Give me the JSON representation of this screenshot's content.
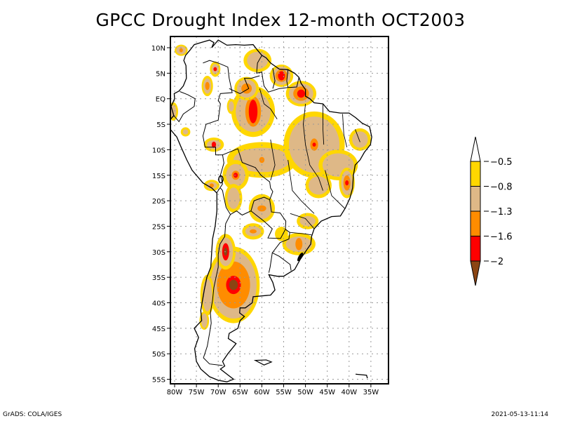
{
  "title": "GPCC Drought Index 12-month OCT2003",
  "footer": {
    "left": "GrADS: COLA/IGES",
    "right": "2021-05-13-11:14"
  },
  "map": {
    "region": "South America",
    "lon_range": [
      -81,
      -31
    ],
    "lat_range": [
      -56,
      11
    ],
    "lat_ticks": [
      {
        "value": 10,
        "label": "10N"
      },
      {
        "value": 5,
        "label": "5N"
      },
      {
        "value": 0,
        "label": "EQ"
      },
      {
        "value": -5,
        "label": "5S"
      },
      {
        "value": -10,
        "label": "10S"
      },
      {
        "value": -15,
        "label": "15S"
      },
      {
        "value": -20,
        "label": "20S"
      },
      {
        "value": -25,
        "label": "25S"
      },
      {
        "value": -30,
        "label": "30S"
      },
      {
        "value": -35,
        "label": "35S"
      },
      {
        "value": -40,
        "label": "40S"
      },
      {
        "value": -45,
        "label": "45S"
      },
      {
        "value": -50,
        "label": "50S"
      },
      {
        "value": -55,
        "label": "55S"
      }
    ],
    "lon_ticks": [
      {
        "value": -80,
        "label": "80W"
      },
      {
        "value": -75,
        "label": "75W"
      },
      {
        "value": -70,
        "label": "70W"
      },
      {
        "value": -65,
        "label": "65W"
      },
      {
        "value": -60,
        "label": "60W"
      },
      {
        "value": -55,
        "label": "55W"
      },
      {
        "value": -50,
        "label": "50W"
      },
      {
        "value": -45,
        "label": "45W"
      },
      {
        "value": -40,
        "label": "40W"
      },
      {
        "value": -35,
        "label": "35W"
      }
    ],
    "grid": "dotted"
  },
  "colorbar": {
    "labels": [
      "-0.5",
      "-0.8",
      "-1.3",
      "-1.6",
      "-2"
    ],
    "colors": {
      "above": "#ffffff",
      "c1": "#ffd700",
      "c2": "#deb887",
      "c3": "#ff8c00",
      "c4": "#ff0000",
      "below": "#8b4513"
    }
  },
  "drought_patches": [
    {
      "name": "argentina-central",
      "lon": -66.5,
      "lat": -36.5,
      "levels": [
        {
          "c": "c1",
          "rx": 6.0,
          "ry": 7.5
        },
        {
          "c": "c2",
          "rx": 5.3,
          "ry": 6.6
        },
        {
          "c": "c3",
          "rx": 3.8,
          "ry": 4.6
        },
        {
          "c": "c4",
          "rx": 1.7,
          "ry": 1.8
        },
        {
          "c": "below",
          "rx": 1.0,
          "ry": 1.0
        }
      ]
    },
    {
      "name": "argentina-northwest",
      "lon": -68.3,
      "lat": -30.0,
      "levels": [
        {
          "c": "c1",
          "rx": 2.3,
          "ry": 3.5
        },
        {
          "c": "c2",
          "rx": 1.7,
          "ry": 2.8
        },
        {
          "c": "c4",
          "rx": 0.8,
          "ry": 1.7
        },
        {
          "c": "below",
          "rx": 0.4,
          "ry": 0.8
        }
      ]
    },
    {
      "name": "chile-south",
      "lon": -72.5,
      "lat": -38.5,
      "levels": [
        {
          "c": "c1",
          "rx": 1.6,
          "ry": 4.0
        },
        {
          "c": "c2",
          "rx": 1.1,
          "ry": 3.2
        }
      ]
    },
    {
      "name": "chile-far-south",
      "lon": -73.2,
      "lat": -43.5,
      "levels": [
        {
          "c": "c1",
          "rx": 1.1,
          "ry": 1.8
        },
        {
          "c": "c2",
          "rx": 0.7,
          "ry": 1.4
        }
      ]
    },
    {
      "name": "amazon-central",
      "lon": -62.0,
      "lat": -2.5,
      "levels": [
        {
          "c": "c1",
          "rx": 5.0,
          "ry": 5.0
        },
        {
          "c": "c2",
          "rx": 4.0,
          "ry": 4.0
        },
        {
          "c": "c3",
          "rx": 1.8,
          "ry": 3.0
        },
        {
          "c": "c4",
          "rx": 1.0,
          "ry": 2.3
        }
      ]
    },
    {
      "name": "amazon-north",
      "lon": -63.5,
      "lat": 2.0,
      "levels": [
        {
          "c": "c1",
          "rx": 2.8,
          "ry": 2.3
        },
        {
          "c": "c2",
          "rx": 2.2,
          "ry": 1.8
        },
        {
          "c": "c3",
          "rx": 1.2,
          "ry": 1.0
        }
      ]
    },
    {
      "name": "amapa-para",
      "lon": -51.0,
      "lat": 1.0,
      "levels": [
        {
          "c": "c1",
          "rx": 3.5,
          "ry": 2.5
        },
        {
          "c": "c2",
          "rx": 2.8,
          "ry": 2.0
        },
        {
          "c": "c3",
          "rx": 1.8,
          "ry": 1.4
        },
        {
          "c": "c4",
          "rx": 0.9,
          "ry": 0.8
        }
      ]
    },
    {
      "name": "guyana-suriname",
      "lon": -55.5,
      "lat": 4.5,
      "levels": [
        {
          "c": "c1",
          "rx": 2.7,
          "ry": 2.2
        },
        {
          "c": "c2",
          "rx": 2.1,
          "ry": 1.8
        },
        {
          "c": "c3",
          "rx": 1.4,
          "ry": 1.2
        },
        {
          "c": "c4",
          "rx": 0.8,
          "ry": 0.9
        }
      ]
    },
    {
      "name": "venezuela-north",
      "lon": -61.0,
      "lat": 7.5,
      "levels": [
        {
          "c": "c1",
          "rx": 3.2,
          "ry": 2.3
        },
        {
          "c": "c2",
          "rx": 2.4,
          "ry": 1.7
        }
      ]
    },
    {
      "name": "colombia-north",
      "lon": -78.5,
      "lat": 9.5,
      "levels": [
        {
          "c": "c1",
          "rx": 1.5,
          "ry": 1.1
        },
        {
          "c": "c2",
          "rx": 1.1,
          "ry": 0.8
        },
        {
          "c": "c3",
          "rx": 0.4,
          "ry": 0.4
        }
      ]
    },
    {
      "name": "colombia-central",
      "lon": -72.5,
      "lat": 2.5,
      "levels": [
        {
          "c": "c1",
          "rx": 1.3,
          "ry": 2.0
        },
        {
          "c": "c2",
          "rx": 0.9,
          "ry": 1.5
        },
        {
          "c": "c3",
          "rx": 0.5,
          "ry": 0.8
        }
      ]
    },
    {
      "name": "venezuela-west",
      "lon": -70.7,
      "lat": 5.8,
      "levels": [
        {
          "c": "c1",
          "rx": 1.2,
          "ry": 1.5
        },
        {
          "c": "c2",
          "rx": 0.8,
          "ry": 1.0
        },
        {
          "c": "c4",
          "rx": 0.4,
          "ry": 0.4
        }
      ]
    },
    {
      "name": "ecuador",
      "lon": -80.3,
      "lat": -2.5,
      "levels": [
        {
          "c": "c1",
          "rx": 1.1,
          "ry": 1.8
        },
        {
          "c": "c2",
          "rx": 0.7,
          "ry": 1.2
        }
      ]
    },
    {
      "name": "peru-north",
      "lon": -77.5,
      "lat": -6.5,
      "levels": [
        {
          "c": "c1",
          "rx": 1.1,
          "ry": 0.9
        },
        {
          "c": "c2",
          "rx": 0.6,
          "ry": 0.5
        }
      ]
    },
    {
      "name": "peru-amazon",
      "lon": -67.0,
      "lat": -1.5,
      "levels": [
        {
          "c": "c1",
          "rx": 1.0,
          "ry": 1.5
        },
        {
          "c": "c2",
          "rx": 0.6,
          "ry": 1.0
        }
      ]
    },
    {
      "name": "acre",
      "lon": -71.0,
      "lat": -9.0,
      "levels": [
        {
          "c": "c1",
          "rx": 2.3,
          "ry": 1.4
        },
        {
          "c": "c2",
          "rx": 1.6,
          "ry": 0.9
        },
        {
          "c": "c4",
          "rx": 0.5,
          "ry": 0.6
        }
      ]
    },
    {
      "name": "mato-grosso",
      "lon": -60.0,
      "lat": -12.0,
      "levels": [
        {
          "c": "c1",
          "rx": 8.0,
          "ry": 3.5
        },
        {
          "c": "c2",
          "rx": 6.5,
          "ry": 2.4
        },
        {
          "c": "c3",
          "rx": 0.6,
          "ry": 0.6
        }
      ]
    },
    {
      "name": "bolivia-north",
      "lon": -66.0,
      "lat": -15.0,
      "levels": [
        {
          "c": "c1",
          "rx": 3.0,
          "ry": 3.0
        },
        {
          "c": "c2",
          "rx": 2.2,
          "ry": 2.2
        },
        {
          "c": "c3",
          "rx": 0.9,
          "ry": 0.9
        },
        {
          "c": "c4",
          "rx": 0.5,
          "ry": 0.5
        }
      ]
    },
    {
      "name": "bolivia-south",
      "lon": -66.5,
      "lat": -19.5,
      "levels": [
        {
          "c": "c1",
          "rx": 2.0,
          "ry": 2.8
        },
        {
          "c": "c2",
          "rx": 1.4,
          "ry": 2.1
        }
      ]
    },
    {
      "name": "peru-south",
      "lon": -71.5,
      "lat": -17.0,
      "levels": [
        {
          "c": "c1",
          "rx": 1.8,
          "ry": 1.1
        },
        {
          "c": "c2",
          "rx": 1.2,
          "ry": 0.7
        },
        {
          "c": "c3",
          "rx": 0.5,
          "ry": 0.4
        }
      ]
    },
    {
      "name": "paraguay-chaco",
      "lon": -60.0,
      "lat": -21.5,
      "levels": [
        {
          "c": "c1",
          "rx": 3.0,
          "ry": 2.8
        },
        {
          "c": "c2",
          "rx": 2.3,
          "ry": 2.1
        },
        {
          "c": "c3",
          "rx": 1.0,
          "ry": 0.6
        }
      ]
    },
    {
      "name": "argentina-north",
      "lon": -62.0,
      "lat": -26.0,
      "levels": [
        {
          "c": "c1",
          "rx": 2.5,
          "ry": 1.6
        },
        {
          "c": "c2",
          "rx": 1.8,
          "ry": 1.0
        },
        {
          "c": "c3",
          "rx": 0.8,
          "ry": 0.4
        }
      ]
    },
    {
      "name": "misiones",
      "lon": -55.5,
      "lat": -26.5,
      "levels": [
        {
          "c": "c1",
          "rx": 1.5,
          "ry": 1.4
        }
      ]
    },
    {
      "name": "rio-grande-sul",
      "lon": -51.5,
      "lat": -28.5,
      "levels": [
        {
          "c": "c1",
          "rx": 3.8,
          "ry": 2.2
        },
        {
          "c": "c2",
          "rx": 3.0,
          "ry": 1.5
        },
        {
          "c": "c3",
          "rx": 0.8,
          "ry": 1.2
        }
      ]
    },
    {
      "name": "parana",
      "lon": -49.5,
      "lat": -24.0,
      "levels": [
        {
          "c": "c1",
          "rx": 2.5,
          "ry": 1.6
        },
        {
          "c": "c2",
          "rx": 1.8,
          "ry": 1.0
        }
      ]
    },
    {
      "name": "goias-tocantins",
      "lon": -48.0,
      "lat": -9.0,
      "levels": [
        {
          "c": "c1",
          "rx": 7.0,
          "ry": 6.5
        },
        {
          "c": "c2",
          "rx": 5.8,
          "ry": 5.5
        },
        {
          "c": "c3",
          "rx": 0.9,
          "ry": 1.2
        },
        {
          "c": "c4",
          "rx": 0.4,
          "ry": 0.4
        }
      ]
    },
    {
      "name": "bahia",
      "lon": -42.5,
      "lat": -13.0,
      "levels": [
        {
          "c": "c1",
          "rx": 4.5,
          "ry": 3.0
        },
        {
          "c": "c2",
          "rx": 3.6,
          "ry": 2.3
        }
      ]
    },
    {
      "name": "espirito-santo",
      "lon": -40.5,
      "lat": -16.5,
      "levels": [
        {
          "c": "c1",
          "rx": 1.8,
          "ry": 3.0
        },
        {
          "c": "c2",
          "rx": 1.3,
          "ry": 2.4
        },
        {
          "c": "c3",
          "rx": 0.8,
          "ry": 1.5
        },
        {
          "c": "c4",
          "rx": 0.4,
          "ry": 0.5
        }
      ]
    },
    {
      "name": "nordeste-coast",
      "lon": -37.5,
      "lat": -8.0,
      "levels": [
        {
          "c": "c1",
          "rx": 2.5,
          "ry": 2.2
        },
        {
          "c": "c2",
          "rx": 1.8,
          "ry": 1.6
        }
      ]
    },
    {
      "name": "minas-gerais",
      "lon": -47.0,
      "lat": -17.0,
      "levels": [
        {
          "c": "c1",
          "rx": 3.0,
          "ry": 2.5
        },
        {
          "c": "c2",
          "rx": 2.3,
          "ry": 1.8
        }
      ]
    }
  ]
}
